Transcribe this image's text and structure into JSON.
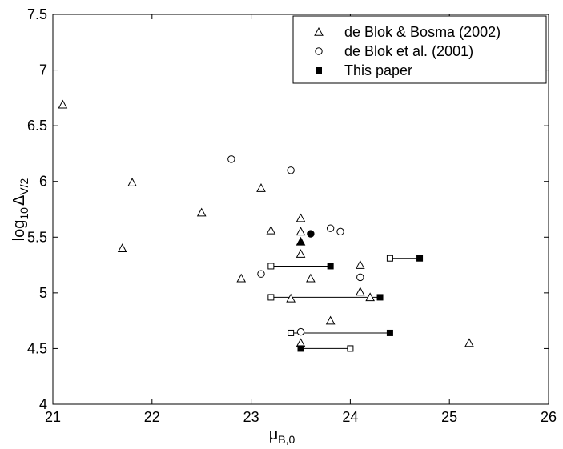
{
  "chart_data": {
    "type": "scatter",
    "xlabel": {
      "base": "μ",
      "sub": "B,0"
    },
    "ylabel": {
      "base": "log",
      "base_sub": "10",
      "sym": "Δ",
      "sym_sub": "V/2"
    },
    "xlim": [
      21,
      26
    ],
    "ylim": [
      4,
      7.5
    ],
    "x_ticks": [
      21,
      22,
      23,
      24,
      25,
      26
    ],
    "x_tick_labels": [
      "21",
      "22",
      "23",
      "24",
      "25",
      "26"
    ],
    "y_ticks": [
      4,
      4.5,
      5,
      5.5,
      6,
      6.5,
      7,
      7.5
    ],
    "y_tick_labels": [
      "4",
      "4.5",
      "5",
      "5.5",
      "6",
      "6.5",
      "7",
      "7.5"
    ],
    "grid": false,
    "legend_position": "top-right",
    "legend": [
      {
        "label": "de Blok & Bosma (2002)",
        "marker": "triangle-open"
      },
      {
        "label": "de Blok et al. (2001)",
        "marker": "circle-open"
      },
      {
        "label": "This paper",
        "marker": "square-filled"
      }
    ],
    "series": [
      {
        "name": "de Blok & Bosma (2002)",
        "marker": "triangle-open",
        "points": [
          {
            "x": 21.1,
            "y": 6.69
          },
          {
            "x": 21.7,
            "y": 5.4
          },
          {
            "x": 21.8,
            "y": 5.99
          },
          {
            "x": 22.5,
            "y": 5.72
          },
          {
            "x": 22.9,
            "y": 5.13
          },
          {
            "x": 23.1,
            "y": 5.94
          },
          {
            "x": 23.2,
            "y": 5.56
          },
          {
            "x": 23.4,
            "y": 4.95
          },
          {
            "x": 23.5,
            "y": 5.67
          },
          {
            "x": 23.5,
            "y": 5.55
          },
          {
            "x": 23.5,
            "y": 5.35
          },
          {
            "x": 23.5,
            "y": 4.55
          },
          {
            "x": 23.6,
            "y": 5.13
          },
          {
            "x": 23.8,
            "y": 4.75
          },
          {
            "x": 24.1,
            "y": 5.25
          },
          {
            "x": 24.1,
            "y": 5.01
          },
          {
            "x": 24.2,
            "y": 4.96
          },
          {
            "x": 25.2,
            "y": 4.55
          }
        ]
      },
      {
        "name": "de Blok et al. (2001)",
        "marker": "circle-open",
        "points": [
          {
            "x": 22.8,
            "y": 6.2
          },
          {
            "x": 23.1,
            "y": 5.17
          },
          {
            "x": 23.4,
            "y": 6.1
          },
          {
            "x": 23.5,
            "y": 4.65
          },
          {
            "x": 23.8,
            "y": 5.58
          },
          {
            "x": 23.9,
            "y": 5.55
          },
          {
            "x": 24.1,
            "y": 5.14
          }
        ]
      },
      {
        "name": "This paper",
        "marker": "square-filled",
        "points": [
          {
            "x": 23.8,
            "y": 5.24,
            "from_x": 23.2
          },
          {
            "x": 24.3,
            "y": 4.96,
            "from_x": 23.2
          },
          {
            "x": 24.4,
            "y": 4.64,
            "from_x": 23.4
          },
          {
            "x": 24.7,
            "y": 5.31,
            "from_x": 24.4
          },
          {
            "x": 23.5,
            "y": 4.5,
            "from_x": 24.0
          }
        ]
      }
    ],
    "highlighted": [
      {
        "x": 23.5,
        "y": 5.46,
        "marker": "triangle-filled"
      },
      {
        "x": 23.6,
        "y": 5.53,
        "marker": "circle-filled"
      }
    ]
  }
}
